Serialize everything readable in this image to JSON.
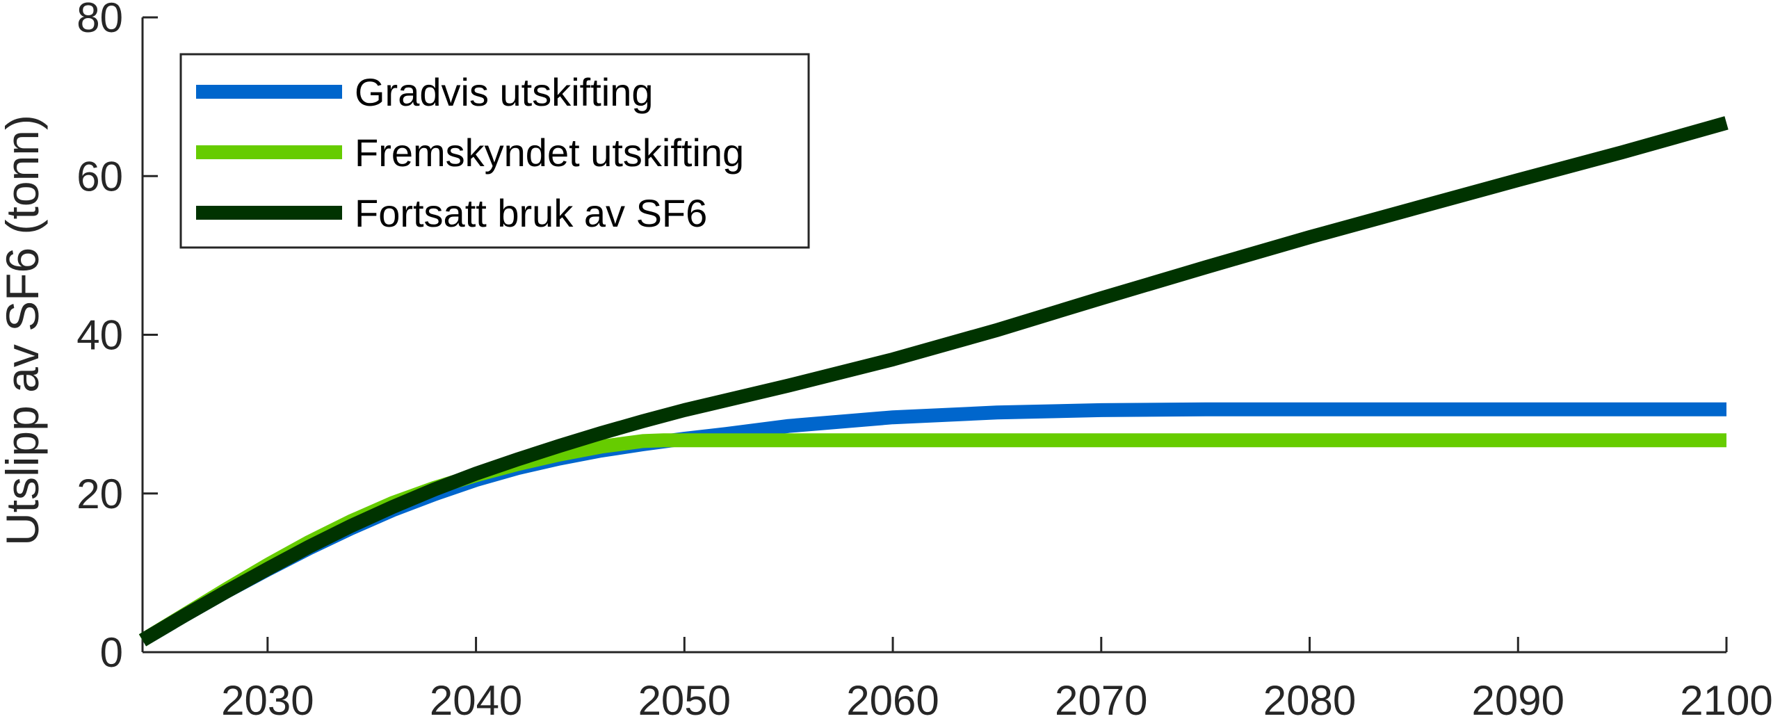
{
  "chart_data": {
    "type": "line",
    "title": "",
    "xlabel": "",
    "ylabel": "Utslipp av SF6 (tonn)",
    "xlim": [
      2024,
      2100
    ],
    "ylim": [
      0,
      80
    ],
    "xticks": [
      2030,
      2040,
      2050,
      2060,
      2070,
      2080,
      2090,
      2100
    ],
    "yticks": [
      0,
      20,
      40,
      60,
      80
    ],
    "grid": false,
    "legend_position": "top-left",
    "series": [
      {
        "name": "Gradvis utskifting",
        "color": "#0066cc",
        "x": [
          2024,
          2026,
          2028,
          2030,
          2032,
          2034,
          2036,
          2038,
          2040,
          2042,
          2044,
          2046,
          2048,
          2050,
          2052,
          2055,
          2060,
          2065,
          2070,
          2075,
          2080,
          2090,
          2100
        ],
        "y": [
          1.5,
          4.6,
          7.6,
          10.4,
          13.1,
          15.6,
          17.9,
          19.9,
          21.7,
          23.2,
          24.4,
          25.4,
          26.2,
          26.9,
          27.5,
          28.5,
          29.6,
          30.2,
          30.5,
          30.6,
          30.6,
          30.6,
          30.6
        ]
      },
      {
        "name": "Fremskyndet utskifting",
        "color": "#66cc00",
        "x": [
          2024,
          2026,
          2028,
          2030,
          2032,
          2034,
          2036,
          2038,
          2040,
          2042,
          2044,
          2046,
          2048,
          2049,
          2050,
          2060,
          2070,
          2080,
          2090,
          2100
        ],
        "y": [
          1.5,
          4.7,
          7.9,
          11.0,
          13.9,
          16.5,
          18.8,
          20.7,
          22.3,
          23.7,
          24.9,
          25.9,
          26.6,
          26.7,
          26.7,
          26.7,
          26.7,
          26.7,
          26.7,
          26.7
        ]
      },
      {
        "name": "Fortsatt bruk av SF6",
        "color": "#003300",
        "x": [
          2024,
          2026,
          2028,
          2030,
          2032,
          2034,
          2036,
          2038,
          2040,
          2042,
          2044,
          2046,
          2048,
          2050,
          2055,
          2060,
          2065,
          2070,
          2075,
          2080,
          2085,
          2090,
          2095,
          2100
        ],
        "y": [
          1.5,
          4.6,
          7.6,
          10.5,
          13.3,
          15.9,
          18.3,
          20.5,
          22.5,
          24.3,
          26.0,
          27.6,
          29.1,
          30.5,
          33.6,
          36.9,
          40.6,
          44.6,
          48.5,
          52.3,
          55.9,
          59.5,
          63.0,
          66.7
        ]
      }
    ]
  }
}
